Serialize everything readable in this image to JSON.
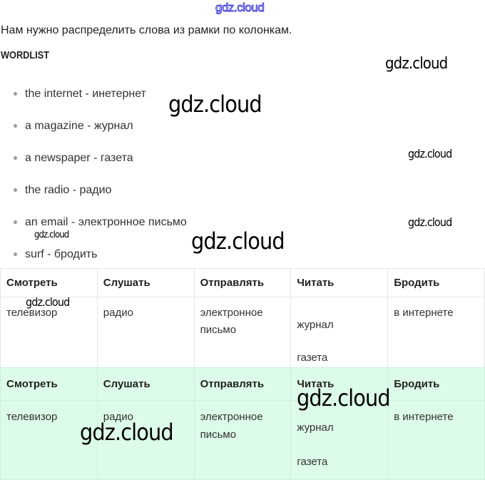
{
  "watermark": "gdz.cloud",
  "intro": "Нам нужно распределить слова из рамки по колонкам.",
  "wordlist_title": "WORDLIST",
  "wordlist": [
    "the internet - инетернет",
    "a magazine - журнал",
    "a newspaper - газета",
    "the radio - радио",
    "an email - электронное письмо",
    "surf - бродить"
  ],
  "headers": [
    "Смотреть",
    "Слушать",
    "Отправлять",
    "Читать",
    "Бродить"
  ],
  "cells": [
    [
      "телевизор"
    ],
    [
      "радио"
    ],
    [
      "электронное письмо"
    ],
    [
      "журнал",
      "газета"
    ],
    [
      "в интернете"
    ]
  ],
  "table2_bg": "#dcfbe8"
}
